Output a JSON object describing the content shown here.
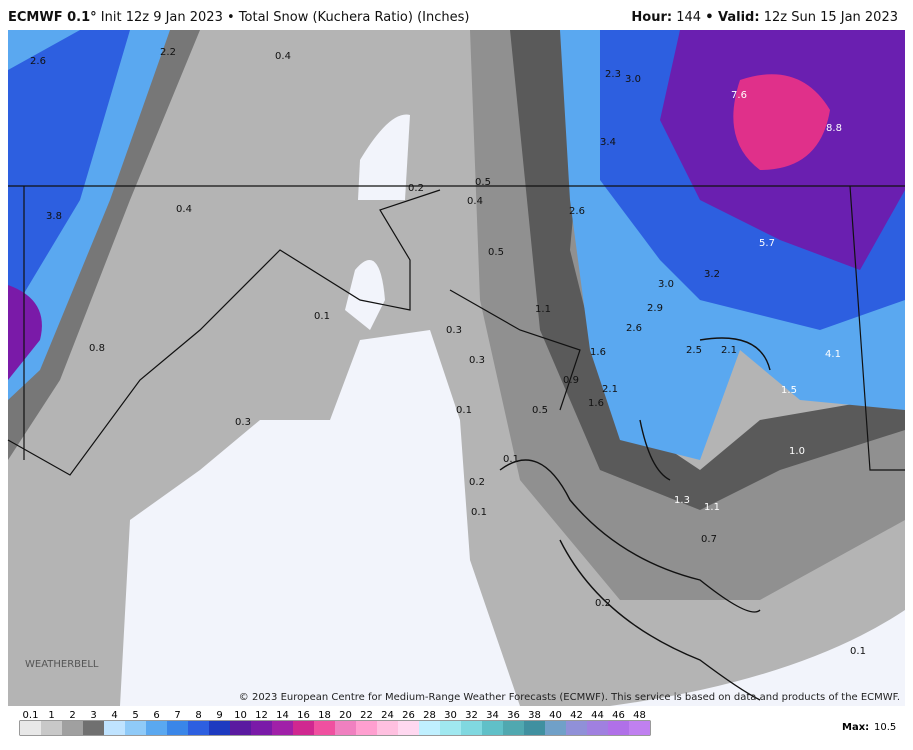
{
  "header": {
    "model": "ECMWF 0.1°",
    "run_info": "Init 12z 9 Jan 2023 • Total Snow (Kuchera Ratio) (Inches)",
    "hour_label": "Hour:",
    "hour": "144",
    "valid_label": "• Valid:",
    "valid": "12z Sun 15 Jan 2023"
  },
  "map_labels": [
    "2.6",
    "2.2",
    "0.4",
    "2.3",
    "3.0",
    "7.6",
    "8.8",
    "3.4",
    "0.5",
    "0.2",
    "0.4",
    "0.4",
    "3.8",
    "2.6",
    "5.7",
    "0.5",
    "3.2",
    "3.0",
    "0.1",
    "1.1",
    "2.9",
    "2.6",
    "0.3",
    "0.8",
    "1.6",
    "2.5",
    "2.1",
    "4.1",
    "0.3",
    "0.9",
    "2.1",
    "1.5",
    "1.6",
    "0.1",
    "0.5",
    "0.3",
    "1.0",
    "0.1",
    "0.2",
    "1.3",
    "1.1",
    "0.1",
    "0.7",
    "0.2",
    "0.1"
  ],
  "colorbar_ticks": [
    "0.1",
    "1",
    "2",
    "3",
    "4",
    "5",
    "6",
    "7",
    "8",
    "9",
    "10",
    "12",
    "14",
    "16",
    "18",
    "20",
    "22",
    "24",
    "26",
    "28",
    "30",
    "32",
    "34",
    "36",
    "38",
    "40",
    "42",
    "44",
    "46",
    "48"
  ],
  "logo": "WEATHERBELL",
  "copyright": "© 2023 European Centre for Medium-Range Weather Forecasts (ECMWF). This service is based on data and products of the ECMWF.",
  "max_label": "Max:",
  "max_value": "10.5"
}
